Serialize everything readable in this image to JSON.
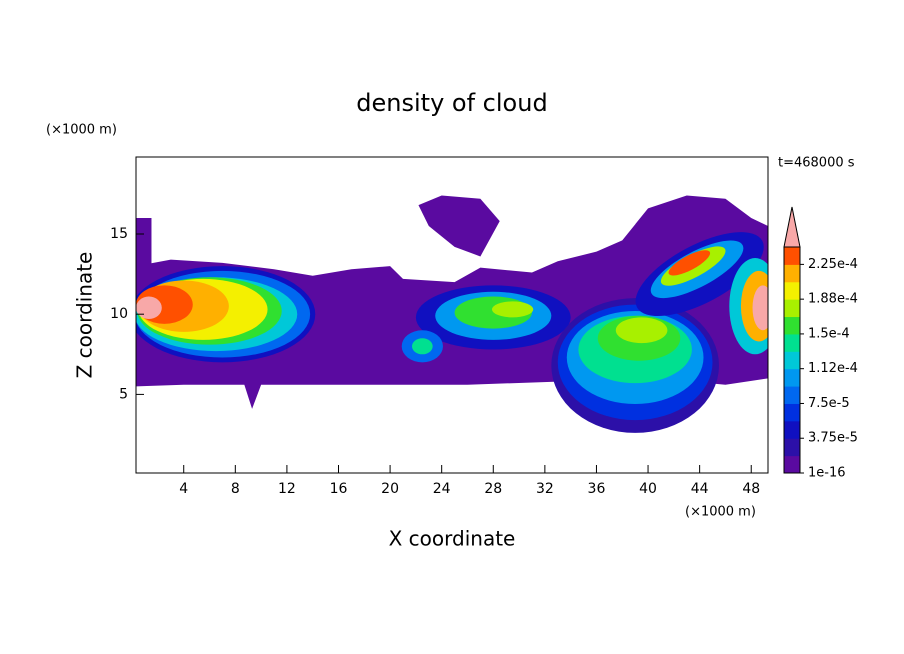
{
  "chart_data": {
    "type": "contour",
    "title": "density of cloud",
    "x_label": "X coordinate",
    "y_label": "Z coordinate",
    "x_unit": "(×1000 m)",
    "y_unit": "(×1000 m)",
    "annotation": "t=468000 s",
    "xlim": [
      0.3,
      49.3
    ],
    "ylim": [
      0.1,
      19.8
    ],
    "xticks": [
      4,
      8,
      12,
      16,
      20,
      24,
      28,
      32,
      36,
      40,
      44,
      48
    ],
    "yticks": [
      5,
      10,
      15
    ],
    "colorbar": {
      "levels": [
        {
          "value": 1e-16,
          "label": "1e-16"
        },
        {
          "value": 3.75e-05,
          "label": "3.75e-5"
        },
        {
          "value": 7.5e-05,
          "label": "7.5e-5"
        },
        {
          "value": 0.000112,
          "label": "1.12e-4"
        },
        {
          "value": 0.00015,
          "label": "1.5e-4"
        },
        {
          "value": 0.000188,
          "label": "1.88e-4"
        },
        {
          "value": 0.000225,
          "label": "2.25e-4"
        }
      ],
      "colors": [
        "#5a0aa0",
        "#2c10a8",
        "#1010c0",
        "#0030e0",
        "#0068f0",
        "#0098f0",
        "#00c8d8",
        "#00e090",
        "#30e030",
        "#a8f000",
        "#f4f000",
        "#ffb000",
        "#ff5000",
        "#f8a8a8"
      ]
    }
  }
}
